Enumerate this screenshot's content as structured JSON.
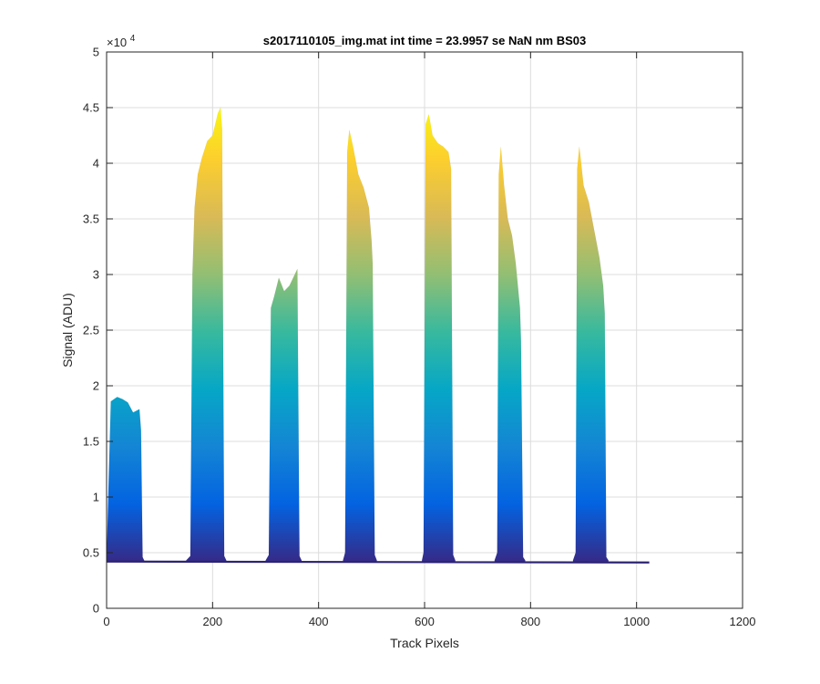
{
  "chart_data": {
    "type": "area",
    "title": "s2017110105_img.mat int time = 23.9957 se  NaN nm BS03",
    "xlabel": "Track Pixels",
    "ylabel": "Signal (ADU)",
    "y_exponent_label": "×10",
    "y_exponent_power": "4",
    "xlim": [
      0,
      1200
    ],
    "ylim": [
      0,
      50000
    ],
    "x_ticks": [
      0,
      200,
      400,
      600,
      800,
      1000,
      1200
    ],
    "x_tick_labels": [
      "0",
      "200",
      "400",
      "600",
      "800",
      "1000",
      "1200"
    ],
    "y_ticks": [
      0,
      5000,
      10000,
      15000,
      20000,
      25000,
      30000,
      35000,
      40000,
      45000,
      50000
    ],
    "y_tick_labels": [
      "0",
      "0.5",
      "1",
      "1.5",
      "2",
      "2.5",
      "3",
      "3.5",
      "4",
      "4.5",
      "5"
    ],
    "grid": true,
    "colormap": [
      "#352a87",
      "#0363e1",
      "#1485d4",
      "#06a7c6",
      "#38b99e",
      "#92bf73",
      "#d9ba56",
      "#fcce2e",
      "#f9fb0e"
    ],
    "baseline": 4200,
    "x_extent": [
      0,
      1024
    ],
    "series": [
      {
        "x": [
          0,
          3,
          8,
          20,
          30,
          40,
          50,
          62,
          65,
          68,
          72
        ],
        "y": [
          4200,
          10000,
          18600,
          19000,
          18800,
          18500,
          17600,
          17900,
          16000,
          4600,
          4200
        ]
      },
      {
        "x": [
          150,
          158,
          162,
          166,
          172,
          180,
          190,
          200,
          210,
          215,
          218,
          222,
          226
        ],
        "y": [
          4300,
          4700,
          30000,
          36000,
          39000,
          40500,
          42000,
          42500,
          44500,
          45000,
          43000,
          4700,
          4300
        ]
      },
      {
        "x": [
          300,
          306,
          310,
          316,
          325,
          335,
          345,
          355,
          360,
          364,
          368
        ],
        "y": [
          4300,
          4800,
          27000,
          28000,
          29700,
          28500,
          29000,
          30000,
          30500,
          4700,
          4300
        ]
      },
      {
        "x": [
          446,
          450,
          454,
          458,
          465,
          475,
          485,
          495,
          500,
          502,
          506,
          510
        ],
        "y": [
          4300,
          5000,
          41000,
          43000,
          41500,
          39000,
          37800,
          36000,
          33000,
          31000,
          4800,
          4300
        ]
      },
      {
        "x": [
          595,
          598,
          602,
          608,
          615,
          625,
          635,
          645,
          650,
          654,
          658
        ],
        "y": [
          4300,
          5000,
          43500,
          44400,
          42500,
          41800,
          41500,
          41000,
          39500,
          4800,
          4300
        ]
      },
      {
        "x": [
          732,
          737,
          740,
          744,
          750,
          757,
          765,
          772,
          780,
          782,
          786,
          790
        ],
        "y": [
          4300,
          5000,
          39000,
          41500,
          38000,
          35000,
          33500,
          31000,
          27000,
          24000,
          4600,
          4300
        ]
      },
      {
        "x": [
          880,
          885,
          888,
          892,
          900,
          910,
          920,
          930,
          937,
          940,
          943,
          947
        ],
        "y": [
          4300,
          5000,
          39500,
          41500,
          38000,
          36500,
          34000,
          31500,
          29000,
          26500,
          4600,
          4300
        ]
      }
    ]
  }
}
